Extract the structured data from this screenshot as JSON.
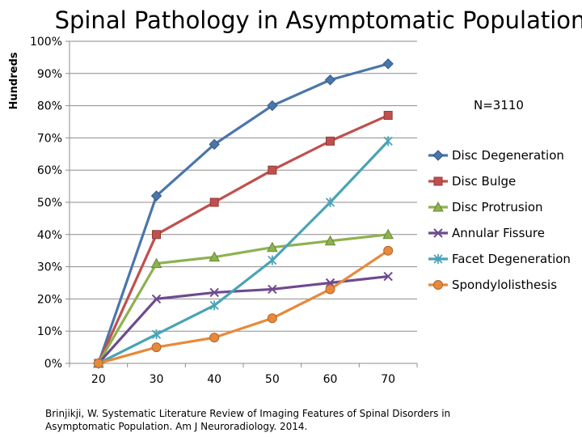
{
  "chart_data": {
    "type": "line",
    "title": "Spinal Pathology in Asymptomatic Population",
    "ylabel": "Hundreds",
    "xlabel": "",
    "categories": [
      "20",
      "30",
      "40",
      "50",
      "60",
      "70"
    ],
    "yticks": [
      "0%",
      "10%",
      "20%",
      "30%",
      "40%",
      "50%",
      "60%",
      "70%",
      "80%",
      "90%",
      "100%"
    ],
    "ylim": [
      0,
      100
    ],
    "grid": true,
    "legend": "right",
    "note": "N=3110",
    "series": [
      {
        "name": "Disc Degeneration",
        "color": "#4a76ab",
        "marker": "diamond",
        "values": [
          0,
          52,
          68,
          80,
          88,
          93
        ]
      },
      {
        "name": "Disc Bulge",
        "color": "#c0504d",
        "marker": "square",
        "values": [
          0,
          40,
          50,
          60,
          69,
          77
        ]
      },
      {
        "name": "Disc Protrusion",
        "color": "#8db24e",
        "marker": "triangle",
        "values": [
          0,
          31,
          33,
          36,
          38,
          40
        ]
      },
      {
        "name": "Annular Fissure",
        "color": "#6e4a8e",
        "marker": "x",
        "values": [
          0,
          20,
          22,
          23,
          25,
          27
        ]
      },
      {
        "name": "Facet Degeneration",
        "color": "#4aa3b5",
        "marker": "star",
        "values": [
          0,
          9,
          18,
          32,
          50,
          69
        ]
      },
      {
        "name": "Spondylolisthesis",
        "color": "#e8893a",
        "marker": "circle",
        "values": [
          0,
          5,
          8,
          14,
          23,
          35
        ]
      }
    ]
  },
  "citation": [
    "Brinjikji, W. Systematic Literature Review of Imaging Features of Spinal Disorders in",
    "Asymptomatic Population. Am J Neuroradiology. 2014."
  ]
}
